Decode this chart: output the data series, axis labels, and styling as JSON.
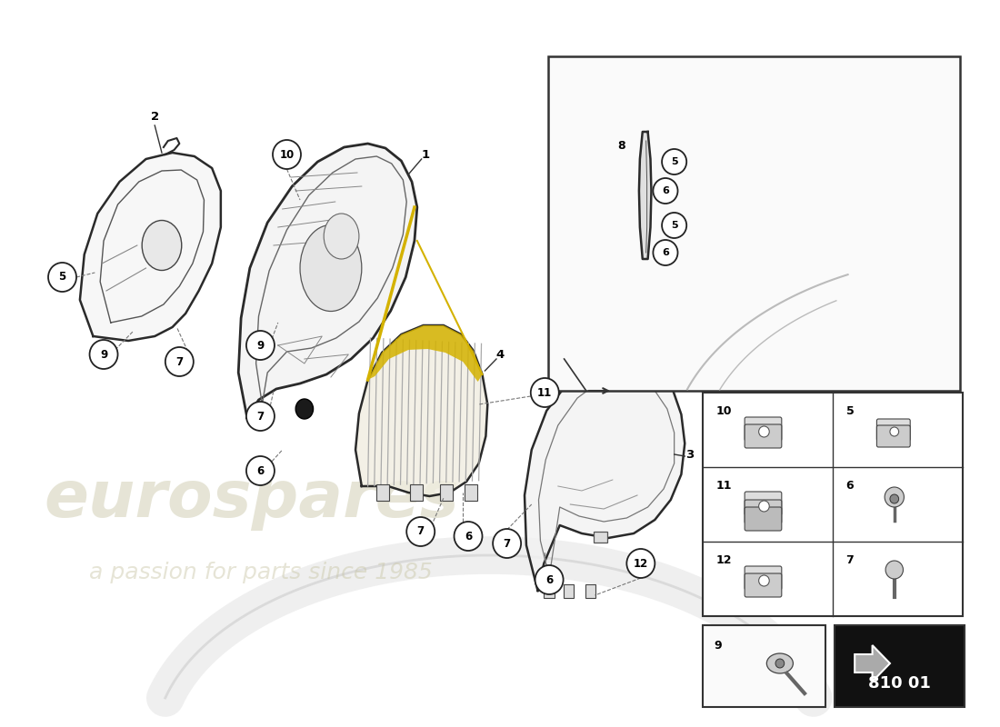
{
  "bg_color": "#ffffff",
  "part_code": "810 01",
  "watermark_color_main": "#c8c5a5",
  "watermark_color_sub": "#c8c5a5",
  "fig_width": 11.0,
  "fig_height": 8.0,
  "dpi": 100
}
